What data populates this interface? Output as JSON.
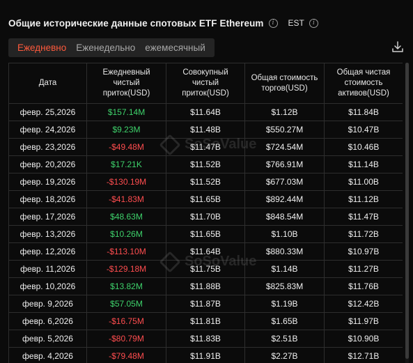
{
  "header": {
    "title": "Общие исторические данные спотовых ETF Ethereum",
    "info_glyph": "i",
    "timezone": "EST"
  },
  "tabs": [
    {
      "label": "Ежедневно",
      "active": true
    },
    {
      "label": "Еженедельно",
      "active": false
    },
    {
      "label": "ежемесячный",
      "active": false
    }
  ],
  "watermark": "SoSoValue",
  "table": {
    "columns": [
      "Дата",
      "Ежедневный чистый приток(USD)",
      "Совокупный чистый приток(USD)",
      "Общая стоимость торгов(USD)",
      "Общая чистая стоимость активов(USD)"
    ],
    "rows": [
      {
        "date": "февр. 25,2026",
        "daily": "$157.14M",
        "daily_sign": "pos",
        "cumulative": "$11.64B",
        "traded": "$1.12B",
        "assets": "$11.84B"
      },
      {
        "date": "февр. 24,2026",
        "daily": "$9.23M",
        "daily_sign": "pos",
        "cumulative": "$11.48B",
        "traded": "$550.27M",
        "assets": "$10.47B"
      },
      {
        "date": "февр. 23,2026",
        "daily": "-$49.48M",
        "daily_sign": "neg",
        "cumulative": "$11.47B",
        "traded": "$724.54M",
        "assets": "$10.46B"
      },
      {
        "date": "февр. 20,2026",
        "daily": "$17.21K",
        "daily_sign": "pos",
        "cumulative": "$11.52B",
        "traded": "$766.91M",
        "assets": "$11.14B"
      },
      {
        "date": "февр. 19,2026",
        "daily": "-$130.19M",
        "daily_sign": "neg",
        "cumulative": "$11.52B",
        "traded": "$677.03M",
        "assets": "$11.00B"
      },
      {
        "date": "февр. 18,2026",
        "daily": "-$41.83M",
        "daily_sign": "neg",
        "cumulative": "$11.65B",
        "traded": "$892.44M",
        "assets": "$11.12B"
      },
      {
        "date": "февр. 17,2026",
        "daily": "$48.63M",
        "daily_sign": "pos",
        "cumulative": "$11.70B",
        "traded": "$848.54M",
        "assets": "$11.47B"
      },
      {
        "date": "февр. 13,2026",
        "daily": "$10.26M",
        "daily_sign": "pos",
        "cumulative": "$11.65B",
        "traded": "$1.10B",
        "assets": "$11.72B"
      },
      {
        "date": "февр. 12,2026",
        "daily": "-$113.10M",
        "daily_sign": "neg",
        "cumulative": "$11.64B",
        "traded": "$880.33M",
        "assets": "$10.97B"
      },
      {
        "date": "февр. 11,2026",
        "daily": "-$129.18M",
        "daily_sign": "neg",
        "cumulative": "$11.75B",
        "traded": "$1.14B",
        "assets": "$11.27B"
      },
      {
        "date": "февр. 10,2026",
        "daily": "$13.82M",
        "daily_sign": "pos",
        "cumulative": "$11.88B",
        "traded": "$825.83M",
        "assets": "$11.76B"
      },
      {
        "date": "февр. 9,2026",
        "daily": "$57.05M",
        "daily_sign": "pos",
        "cumulative": "$11.87B",
        "traded": "$1.19B",
        "assets": "$12.42B"
      },
      {
        "date": "февр. 6,2026",
        "daily": "-$16.75M",
        "daily_sign": "neg",
        "cumulative": "$11.81B",
        "traded": "$1.65B",
        "assets": "$11.97B"
      },
      {
        "date": "февр. 5,2026",
        "daily": "-$80.79M",
        "daily_sign": "neg",
        "cumulative": "$11.83B",
        "traded": "$2.51B",
        "assets": "$10.90B"
      },
      {
        "date": "февр. 4,2026",
        "daily": "-$79.48M",
        "daily_sign": "neg",
        "cumulative": "$11.91B",
        "traded": "$2.27B",
        "assets": "$12.71B"
      }
    ]
  },
  "colors": {
    "accent": "#ff5a3c",
    "positive": "#3ed26b",
    "negative": "#ff4d4f",
    "background": "#0b0b0b"
  },
  "icons": [
    "info-icon",
    "download-icon",
    "sosovalue-logo-icon"
  ]
}
